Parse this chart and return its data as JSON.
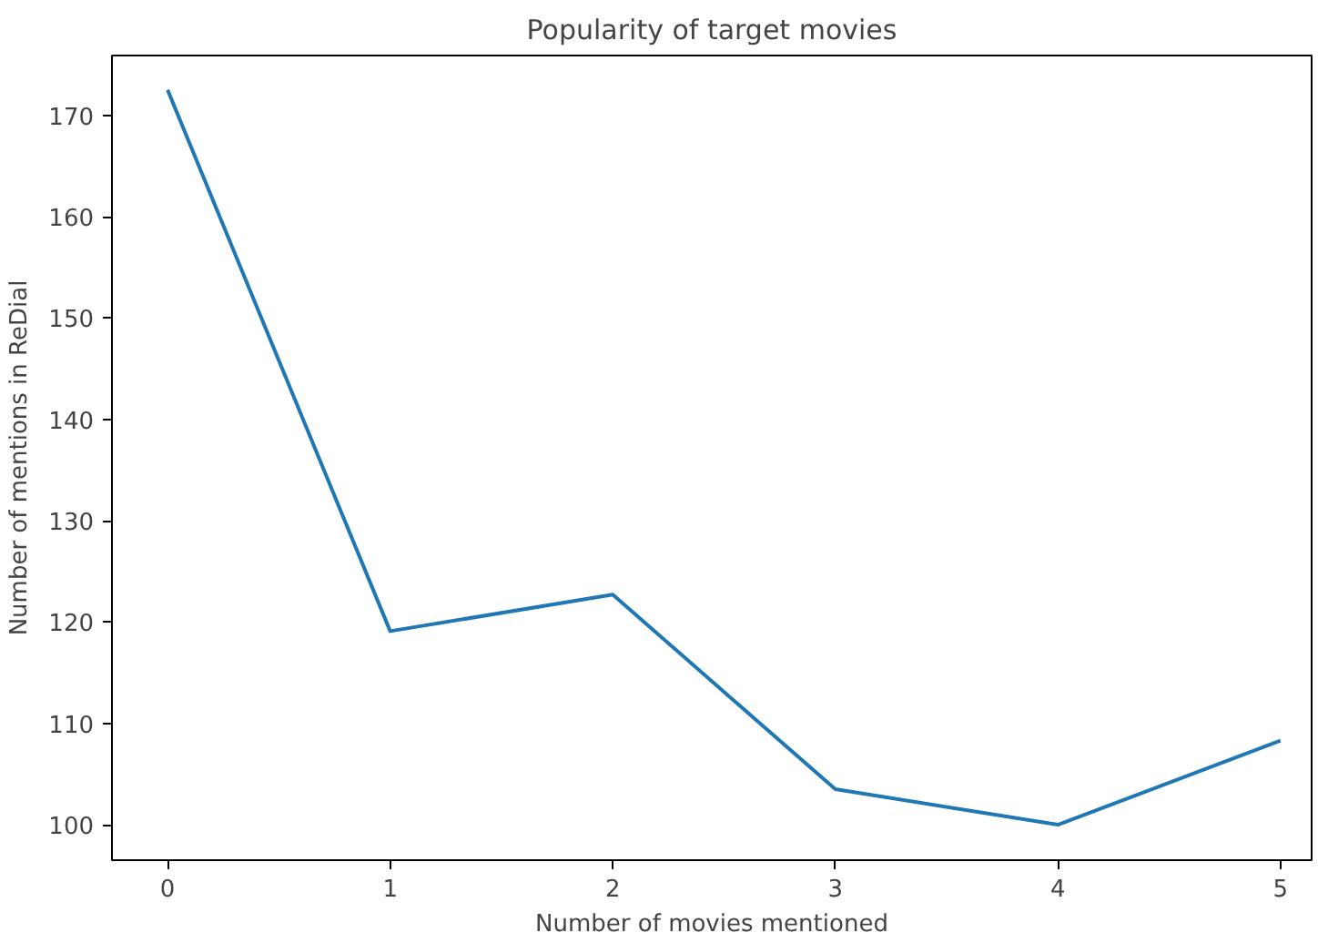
{
  "chart_data": {
    "type": "line",
    "title": "Popularity of target movies",
    "xlabel": "Number of movies mentioned",
    "ylabel": "Number of mentions in ReDial",
    "x": [
      0,
      1,
      2,
      3,
      4,
      5
    ],
    "series": [
      {
        "color": "#1f77b4",
        "values": [
          172.5,
          119.1,
          122.7,
          103.5,
          100,
          108.3
        ]
      }
    ],
    "xlim": [
      -0.25,
      5.14
    ],
    "ylim": [
      96.5,
      175.9
    ],
    "xticks": [
      0,
      1,
      2,
      3,
      4,
      5
    ],
    "yticks": [
      100,
      110,
      120,
      130,
      140,
      150,
      160,
      170
    ],
    "grid": false
  }
}
